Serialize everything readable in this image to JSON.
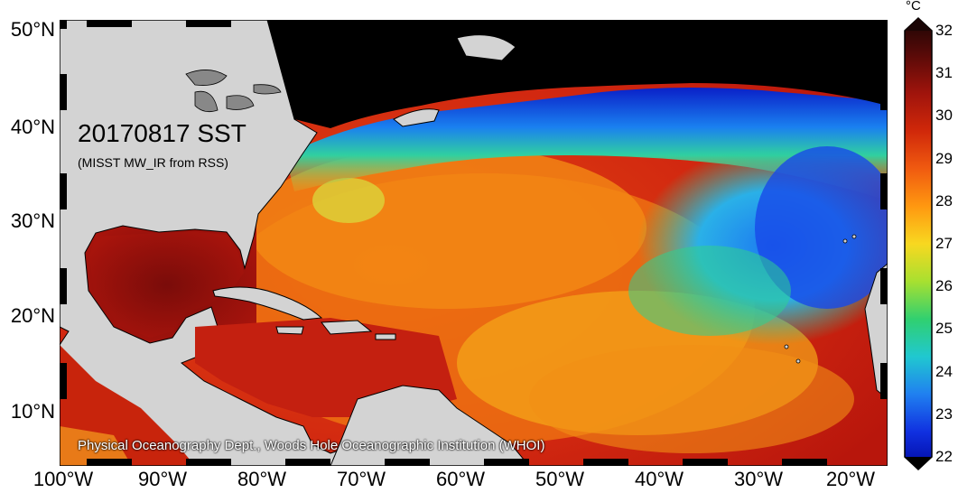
{
  "map": {
    "title": "20170817 SST",
    "subtitle": "(MISST MW_IR from RSS)",
    "credit": "Physical Oceanography Dept., Woods Hole Oceanographic Institution (WHOI)",
    "lat_labels": [
      "50°N",
      "40°N",
      "30°N",
      "20°N",
      "10°N"
    ],
    "lon_labels": [
      "100°W",
      "90°W",
      "80°W",
      "70°W",
      "60°W",
      "50°W",
      "40°W",
      "30°W",
      "20°W"
    ],
    "colors": {
      "land": "#d3d3d3",
      "no_data": "#000000",
      "warm": "#c81e0c",
      "hot": "#8a0f0a",
      "mid": "#f06010",
      "orange": "#ff9a10",
      "yellow": "#f6e020",
      "green": "#3ad07a",
      "cyan": "#28c8e8",
      "blue": "#1060f0",
      "deep_blue": "#0a1ac8"
    }
  },
  "colorbar": {
    "unit": "°C",
    "min": 22,
    "max": 32,
    "ticks": [
      "32",
      "31",
      "30",
      "29",
      "28",
      "27",
      "26",
      "25",
      "24",
      "23",
      "22"
    ],
    "gradient": [
      "#1a0505",
      "#5a0a08",
      "#a0140c",
      "#d0280a",
      "#f05a10",
      "#ff9810",
      "#f8d820",
      "#a8e030",
      "#30d070",
      "#20c8d0",
      "#2080f0",
      "#1030e0",
      "#0008a0"
    ]
  }
}
